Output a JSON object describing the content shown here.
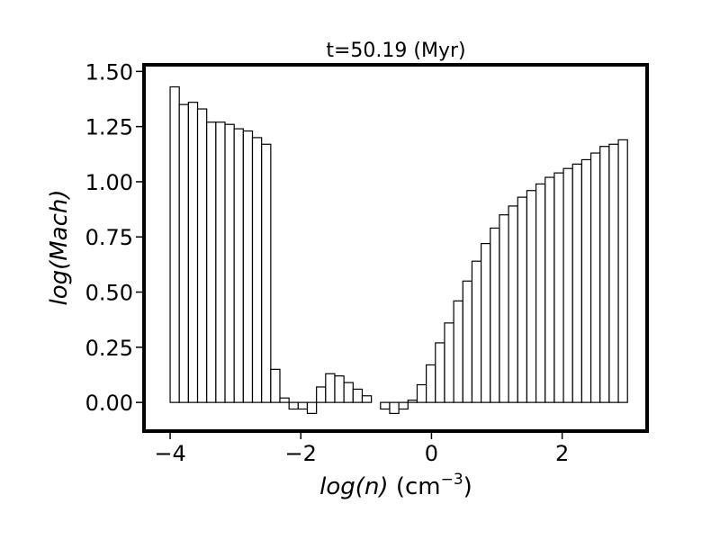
{
  "chart_data": {
    "type": "bar",
    "title": "t=50.19 (Myr)",
    "xlabel": {
      "var": "log(n)",
      "unit_base": "(cm",
      "unit_exp": "−3",
      "unit_close": ")"
    },
    "ylabel": "log(Mach)",
    "xlim": [
      -4.4,
      3.3
    ],
    "ylim": [
      -0.13,
      1.53
    ],
    "xticks": [
      -4,
      -2,
      0,
      2
    ],
    "xtick_labels": [
      "−4",
      "−2",
      "0",
      "2"
    ],
    "yticks": [
      0.0,
      0.25,
      0.5,
      0.75,
      1.0,
      1.25,
      1.5
    ],
    "ytick_labels": [
      "0.00",
      "0.25",
      "0.50",
      "0.75",
      "1.00",
      "1.25",
      "1.50"
    ],
    "grid": false,
    "bar_style": {
      "fill": "#ffffff",
      "edge": "#000000"
    },
    "bins": {
      "edges_start": -4.0,
      "bin_width": 0.14,
      "values": [
        1.43,
        1.35,
        1.36,
        1.33,
        1.27,
        1.27,
        1.26,
        1.24,
        1.23,
        1.2,
        1.17,
        0.15,
        0.02,
        -0.03,
        -0.03,
        -0.05,
        0.07,
        0.13,
        0.12,
        0.09,
        0.06,
        0.03,
        0.0,
        -0.03,
        -0.05,
        -0.03,
        0.01,
        0.08,
        0.17,
        0.27,
        0.36,
        0.46,
        0.55,
        0.64,
        0.72,
        0.79,
        0.85,
        0.89,
        0.93,
        0.96,
        0.99,
        1.02,
        1.04,
        1.06,
        1.08,
        1.1,
        1.13,
        1.16,
        1.17,
        1.19
      ]
    }
  }
}
